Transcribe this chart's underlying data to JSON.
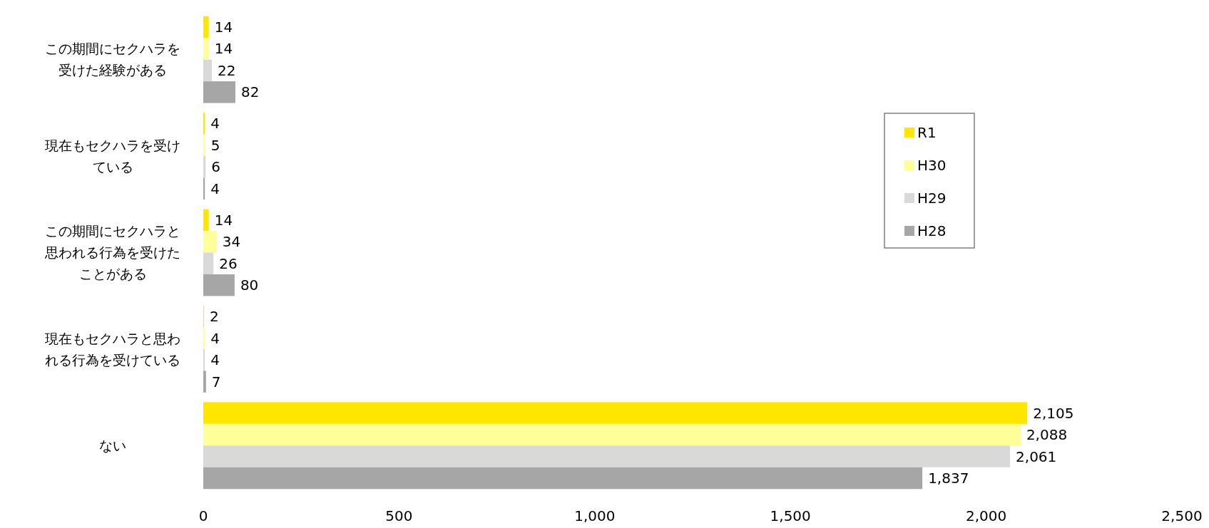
{
  "chart_data": {
    "type": "bar",
    "orientation": "horizontal",
    "categories": [
      "この期間にセクハラを受けた経験がある",
      "現在もセクハラを受けている",
      "この期間にセクハラと思われる行為を受けたことがある",
      "現在もセクハラと思われる行為を受けている",
      "ない"
    ],
    "series": [
      {
        "name": "R1",
        "color": "#ffe600",
        "values": [
          14,
          4,
          14,
          2,
          2105
        ],
        "value_labels": [
          "14",
          "4",
          "14",
          "2",
          "2,105"
        ]
      },
      {
        "name": "H30",
        "color": "#ffff99",
        "values": [
          14,
          5,
          34,
          4,
          2088
        ],
        "value_labels": [
          "14",
          "5",
          "34",
          "4",
          "2,088"
        ]
      },
      {
        "name": "H29",
        "color": "#d9d9d9",
        "values": [
          22,
          6,
          26,
          4,
          2061
        ],
        "value_labels": [
          "22",
          "6",
          "26",
          "4",
          "2,061"
        ]
      },
      {
        "name": "H28",
        "color": "#a6a6a6",
        "values": [
          82,
          4,
          80,
          7,
          1837
        ],
        "value_labels": [
          "82",
          "4",
          "80",
          "7",
          "1,837"
        ]
      }
    ],
    "xlim": [
      0,
      2500
    ],
    "xticks": [
      0,
      {
        "value": 500,
        "label": "500"
      },
      {
        "value": 1000,
        "label": "1,000"
      },
      {
        "value": 1500,
        "label": "1,500"
      },
      {
        "value": 2000,
        "label": "2,000"
      },
      {
        "value": 2500,
        "label": "2,500"
      }
    ],
    "legend": "right",
    "grid": false
  }
}
